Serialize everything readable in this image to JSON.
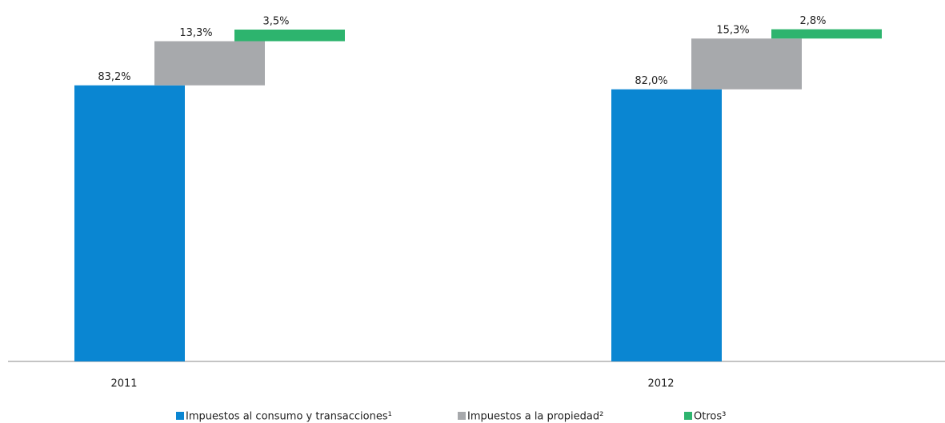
{
  "chart_data": {
    "type": "waterfall",
    "categories": [
      "2011",
      "2012"
    ],
    "ylim": [
      0,
      100
    ],
    "legend": "bottom",
    "series": [
      {
        "name": "Impuestos al consumo y transacciones¹",
        "color": "#0a86d2",
        "values": [
          83.2,
          82.0
        ],
        "value_labels": [
          "83,2%",
          "82,0%"
        ]
      },
      {
        "name": "Impuestos a la propiedad²",
        "color": "#a7a9ac",
        "values": [
          13.3,
          15.3
        ],
        "value_labels": [
          "13,3%",
          "15,3%"
        ]
      },
      {
        "name": "Otros³",
        "color": "#2db46e",
        "values": [
          3.5,
          2.8
        ],
        "value_labels": [
          "3,5%",
          "2,8%"
        ]
      }
    ]
  }
}
